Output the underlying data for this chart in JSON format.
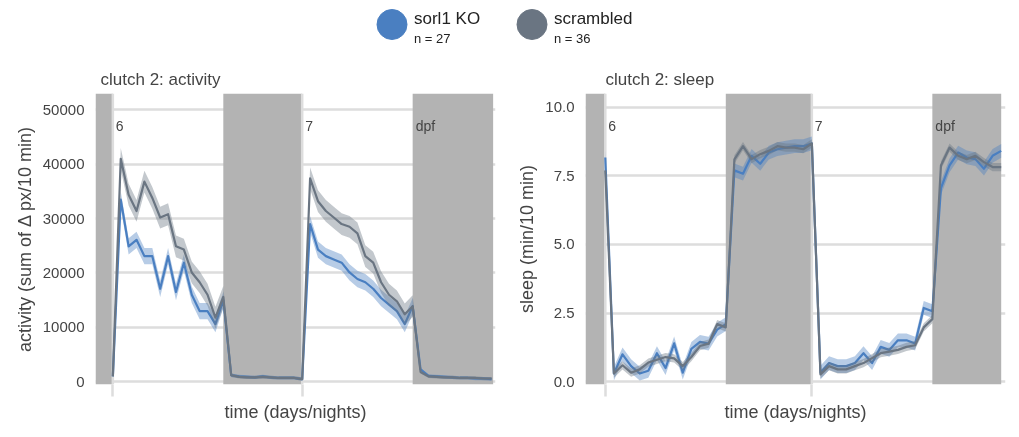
{
  "chart_data": [
    {
      "type": "line",
      "title": "clutch 2: activity",
      "xlabel": "time (days/nights)",
      "ylabel": "activity (sum of Δ px/10 min)",
      "categories": [
        null,
        null,
        null,
        null,
        null,
        null,
        null,
        null,
        null,
        null,
        null,
        null,
        null,
        null,
        null,
        null,
        null,
        null,
        null,
        null,
        null,
        null,
        null,
        null,
        null,
        null,
        null,
        null,
        null,
        null,
        null,
        null,
        null,
        null,
        null,
        null,
        null,
        null,
        null,
        null,
        null,
        null,
        null,
        null,
        null,
        null,
        null,
        null,
        null
      ],
      "series": [
        {
          "name": "sorl1 KO\nn = 27",
          "color": "#4a7fc1",
          "values": [
            1000,
            33500,
            24900,
            26100,
            23100,
            23100,
            17100,
            23100,
            16500,
            21900,
            16000,
            13000,
            13000,
            10600,
            15000,
            1200,
            1000,
            900,
            800,
            1000,
            800,
            700,
            700,
            700,
            500,
            29000,
            24300,
            23100,
            22500,
            21900,
            20100,
            18900,
            18300,
            17100,
            15400,
            14200,
            13000,
            10600,
            13900,
            2300,
            1100,
            1000,
            900,
            800,
            700,
            700,
            600,
            600,
            500
          ],
          "lower": [
            700,
            32000,
            23400,
            24600,
            21600,
            21600,
            15600,
            21600,
            15000,
            20400,
            14500,
            11500,
            11500,
            9100,
            13500,
            900,
            700,
            600,
            500,
            700,
            500,
            400,
            400,
            400,
            200,
            27500,
            22800,
            21600,
            21000,
            20400,
            18600,
            17400,
            16800,
            15600,
            13900,
            12700,
            11500,
            9100,
            12400,
            2000,
            800,
            700,
            600,
            500,
            400,
            400,
            300,
            300,
            200
          ],
          "upper": [
            1300,
            35000,
            26400,
            27600,
            24600,
            24600,
            18600,
            24600,
            18000,
            23400,
            17500,
            14500,
            14500,
            12100,
            16500,
            1500,
            1300,
            1200,
            1100,
            1300,
            1100,
            1000,
            1000,
            1000,
            800,
            30500,
            25800,
            24600,
            24000,
            23400,
            21600,
            20400,
            19800,
            18600,
            16900,
            15700,
            14500,
            12100,
            15400,
            2600,
            1400,
            1300,
            1200,
            1100,
            1000,
            1000,
            900,
            900,
            800
          ]
        },
        {
          "name": "scrambled\nn = 36",
          "color": "#6a7582",
          "values": [
            1000,
            41000,
            34400,
            31400,
            36800,
            33800,
            30200,
            30800,
            24900,
            24300,
            20100,
            18300,
            16000,
            11800,
            15600,
            1200,
            900,
            800,
            800,
            900,
            800,
            700,
            700,
            700,
            500,
            37400,
            33200,
            31400,
            30200,
            29000,
            28500,
            27300,
            23100,
            21900,
            18300,
            16000,
            14800,
            12400,
            13900,
            1800,
            1000,
            900,
            800,
            800,
            700,
            700,
            700,
            600,
            600
          ],
          "lower": [
            700,
            39000,
            32400,
            29400,
            34800,
            31800,
            28200,
            28800,
            22900,
            22300,
            18100,
            16300,
            14000,
            9800,
            13600,
            900,
            600,
            500,
            500,
            600,
            500,
            400,
            400,
            400,
            200,
            35400,
            31200,
            29400,
            28200,
            27000,
            26500,
            25300,
            21100,
            19900,
            16300,
            14000,
            12800,
            10400,
            11900,
            1500,
            700,
            600,
            500,
            500,
            400,
            400,
            400,
            300,
            300
          ],
          "upper": [
            1300,
            43000,
            36400,
            33400,
            38800,
            35800,
            32200,
            32800,
            26900,
            26300,
            22100,
            20300,
            18000,
            13800,
            17600,
            1500,
            1200,
            1100,
            1100,
            1200,
            1100,
            1000,
            1000,
            1000,
            800,
            39400,
            35200,
            33400,
            32200,
            31000,
            30500,
            29300,
            25100,
            23900,
            20300,
            18000,
            16800,
            14400,
            15900,
            2100,
            1300,
            1200,
            1100,
            1100,
            1000,
            1000,
            1000,
            900,
            900
          ]
        }
      ],
      "ylim": [
        -500,
        53000
      ],
      "yticks": [
        0,
        10000,
        20000,
        30000,
        40000,
        50000
      ],
      "grid": "y",
      "legend": "top",
      "marker": "none",
      "line_style": "solid",
      "annotations": [
        "6",
        "7",
        "dpf"
      ]
    },
    {
      "type": "line",
      "title": "clutch 2: sleep",
      "xlabel": "time (days/nights)",
      "ylabel": "sleep (min/10 min)",
      "categories": [
        null,
        null,
        null,
        null,
        null,
        null,
        null,
        null,
        null,
        null,
        null,
        null,
        null,
        null,
        null,
        null,
        null,
        null,
        null,
        null,
        null,
        null,
        null,
        null,
        null,
        null,
        null,
        null,
        null,
        null,
        null,
        null,
        null,
        null,
        null,
        null,
        null,
        null,
        null,
        null,
        null,
        null,
        null,
        null,
        null,
        null,
        null
      ],
      "series": [
        {
          "color": "#4a7fc1",
          "values": [
            8.17,
            0.3,
            1.0,
            0.57,
            0.3,
            0.4,
            1.04,
            0.5,
            1.4,
            0.33,
            1.2,
            1.45,
            1.39,
            1.9,
            2.1,
            7.7,
            7.58,
            8.23,
            7.94,
            8.35,
            8.47,
            8.53,
            8.58,
            8.58,
            8.68,
            0.33,
            0.68,
            0.57,
            0.57,
            0.68,
            1.04,
            0.68,
            1.27,
            1.16,
            1.51,
            1.51,
            1.39,
            2.69,
            2.57,
            7.05,
            7.88,
            8.35,
            8.17,
            8.11,
            7.76,
            8.23,
            8.41
          ],
          "lower": [
            7.92,
            0.05,
            0.75,
            0.32,
            0.05,
            0.15,
            0.79,
            0.25,
            1.15,
            0.08,
            0.95,
            1.2,
            1.14,
            1.65,
            1.85,
            7.45,
            7.33,
            7.98,
            7.69,
            8.1,
            8.22,
            8.28,
            8.33,
            8.33,
            8.43,
            0.08,
            0.43,
            0.32,
            0.32,
            0.43,
            0.79,
            0.43,
            1.02,
            0.91,
            1.26,
            1.26,
            1.14,
            2.44,
            2.32,
            6.8,
            7.63,
            8.1,
            7.92,
            7.86,
            7.51,
            7.98,
            8.16
          ],
          "upper": [
            8.42,
            0.55,
            1.25,
            0.82,
            0.55,
            0.65,
            1.29,
            0.75,
            1.65,
            0.58,
            1.45,
            1.7,
            1.64,
            2.15,
            2.35,
            7.95,
            7.83,
            8.48,
            8.19,
            8.6,
            8.72,
            8.78,
            8.83,
            8.83,
            8.93,
            0.58,
            0.93,
            0.82,
            0.82,
            0.93,
            1.29,
            0.93,
            1.52,
            1.41,
            1.76,
            1.76,
            1.64,
            2.94,
            2.82,
            7.3,
            8.13,
            8.6,
            8.42,
            8.36,
            8.01,
            8.48,
            8.66
          ]
        },
        {
          "color": "#6a7582",
          "values": [
            7.7,
            0.3,
            0.6,
            0.33,
            0.45,
            0.7,
            0.8,
            0.9,
            0.85,
            0.57,
            0.9,
            1.3,
            1.39,
            2.1,
            1.98,
            8.1,
            8.58,
            8.11,
            8.29,
            8.41,
            8.58,
            8.53,
            8.53,
            8.47,
            8.68,
            0.27,
            0.57,
            0.45,
            0.45,
            0.57,
            0.68,
            0.86,
            1.04,
            1.1,
            1.16,
            1.27,
            1.33,
            1.98,
            2.28,
            7.88,
            8.53,
            8.23,
            8.11,
            8.23,
            8.0,
            7.82,
            7.82
          ],
          "lower": [
            7.55,
            0.15,
            0.45,
            0.18,
            0.3,
            0.55,
            0.65,
            0.75,
            0.7,
            0.42,
            0.75,
            1.15,
            1.24,
            1.95,
            1.83,
            7.95,
            8.43,
            7.96,
            8.14,
            8.26,
            8.43,
            8.38,
            8.38,
            8.32,
            8.53,
            0.12,
            0.42,
            0.3,
            0.3,
            0.42,
            0.53,
            0.71,
            0.89,
            0.95,
            1.01,
            1.12,
            1.18,
            1.83,
            2.13,
            7.73,
            8.38,
            8.08,
            7.96,
            8.08,
            7.85,
            7.67,
            7.67
          ],
          "upper": [
            7.85,
            0.45,
            0.75,
            0.48,
            0.6,
            0.85,
            0.95,
            1.05,
            1.0,
            0.72,
            1.05,
            1.45,
            1.54,
            2.25,
            2.13,
            8.25,
            8.73,
            8.26,
            8.44,
            8.56,
            8.73,
            8.68,
            8.68,
            8.62,
            8.83,
            0.42,
            0.72,
            0.6,
            0.6,
            0.72,
            0.83,
            1.01,
            1.19,
            1.25,
            1.31,
            1.42,
            1.48,
            2.13,
            2.43,
            8.03,
            8.68,
            8.38,
            8.26,
            8.38,
            8.15,
            7.97,
            7.97
          ]
        }
      ],
      "ylim": [
        -0.1,
        10.5
      ],
      "yticks": [
        {
          "value": 0,
          "label": "0.0"
        },
        {
          "value": 2.5,
          "label": "2.5"
        },
        {
          "value": 5,
          "label": "5.0"
        },
        {
          "value": 7.5,
          "label": "7.5"
        },
        {
          "value": 10,
          "label": "10.0"
        }
      ],
      "grid": "y",
      "marker": "none",
      "line_style": "solid",
      "annotations": [
        "6",
        "7",
        "dpf"
      ]
    }
  ]
}
